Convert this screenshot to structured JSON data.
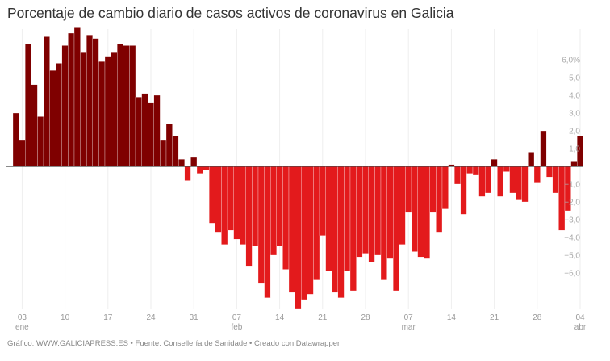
{
  "title": "Porcentaje de cambio diario de casos activos de coronavirus en Galicia",
  "footer": "Gráfico: WWW.GALICIAPRESS.ES • Fuente: Consellería de Sanidade • Creado con Datawrapper",
  "chart_data": {
    "type": "bar",
    "title": "Porcentaje de cambio diario de casos activos de coronavirus en Galicia",
    "xlabel": "",
    "ylabel": "",
    "start_date": "2021-01-02",
    "end_date": "2021-04-04",
    "ylim": [
      -8,
      8
    ],
    "grid": "vertical",
    "colors": {
      "positive": "#7f0000",
      "negative": "#e31a1c",
      "zero_line": "#444444",
      "grid": "#eeeeee"
    },
    "y_ticks": [
      {
        "value": 6,
        "label": "6,0%"
      },
      {
        "value": 5,
        "label": "5,0"
      },
      {
        "value": 4,
        "label": "4,0"
      },
      {
        "value": 3,
        "label": "3,0"
      },
      {
        "value": 2,
        "label": "2,0"
      },
      {
        "value": 1,
        "label": "1,0"
      },
      {
        "value": -1,
        "label": "−1,0"
      },
      {
        "value": -2,
        "label": "−2,0"
      },
      {
        "value": -3,
        "label": "−3,0"
      },
      {
        "value": -4,
        "label": "−4,0"
      },
      {
        "value": -5,
        "label": "−5,0"
      },
      {
        "value": -6,
        "label": "−6,0"
      }
    ],
    "x_ticks": [
      {
        "date": "2021-01-03",
        "label": "03",
        "month": "ene"
      },
      {
        "date": "2021-01-10",
        "label": "10"
      },
      {
        "date": "2021-01-17",
        "label": "17"
      },
      {
        "date": "2021-01-24",
        "label": "24"
      },
      {
        "date": "2021-01-31",
        "label": "31"
      },
      {
        "date": "2021-02-07",
        "label": "07",
        "month": "feb"
      },
      {
        "date": "2021-02-14",
        "label": "14"
      },
      {
        "date": "2021-02-21",
        "label": "21"
      },
      {
        "date": "2021-02-28",
        "label": "28"
      },
      {
        "date": "2021-03-07",
        "label": "07",
        "month": "mar"
      },
      {
        "date": "2021-03-14",
        "label": "14"
      },
      {
        "date": "2021-03-21",
        "label": "21"
      },
      {
        "date": "2021-03-28",
        "label": "28"
      },
      {
        "date": "2021-04-04",
        "label": "04",
        "month": "abr"
      }
    ],
    "values": [
      3.0,
      1.5,
      6.9,
      4.6,
      2.8,
      7.3,
      5.4,
      5.8,
      6.8,
      7.5,
      7.8,
      6.4,
      7.4,
      7.2,
      5.9,
      6.2,
      6.4,
      6.9,
      6.8,
      6.8,
      3.9,
      4.1,
      3.6,
      4.0,
      1.5,
      2.4,
      1.7,
      0.4,
      -0.8,
      0.5,
      -0.4,
      -0.2,
      -3.2,
      -3.7,
      -4.4,
      -3.6,
      -4.1,
      -4.4,
      -5.6,
      -4.5,
      -6.6,
      -7.4,
      -5.0,
      -4.5,
      -5.8,
      -7.1,
      -8.0,
      -7.5,
      -7.2,
      -6.4,
      -3.9,
      -5.9,
      -7.1,
      -7.4,
      -5.9,
      -7.0,
      -5.1,
      -4.9,
      -5.4,
      -5.0,
      -6.4,
      -5.2,
      -7.0,
      -4.4,
      -2.6,
      -4.8,
      -5.1,
      -5.2,
      -2.6,
      -3.7,
      -2.4,
      0.1,
      -1.0,
      -2.7,
      -0.4,
      -0.5,
      -1.7,
      -1.5,
      0.4,
      -1.7,
      -0.3,
      -1.5,
      -1.9,
      -2.0,
      0.8,
      -0.9,
      2.0,
      -0.6,
      -1.5,
      -3.6,
      -2.5,
      0.3,
      1.7
    ]
  }
}
